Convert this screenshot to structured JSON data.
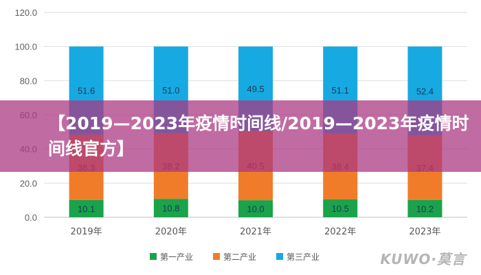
{
  "chart_data": {
    "type": "bar",
    "stacked": true,
    "categories": [
      "2019年",
      "2020年",
      "2021年",
      "2022年",
      "2023年"
    ],
    "series": [
      {
        "name": "第一产业",
        "color": "#1aa34a",
        "values": [
          10.1,
          10.8,
          10.0,
          10.5,
          10.2
        ]
      },
      {
        "name": "第二产业",
        "color": "#f07c2a",
        "values": [
          38.3,
          38.2,
          40.5,
          38.4,
          37.4
        ]
      },
      {
        "name": "第三产业",
        "color": "#17a9e1",
        "values": [
          51.6,
          51.0,
          49.5,
          51.1,
          52.4
        ]
      }
    ],
    "y_ticks": [
      "0.0",
      "20.0",
      "40.0",
      "60.0",
      "80.0",
      "100.0",
      "120.0"
    ],
    "ylim": [
      0,
      120
    ],
    "grid": true,
    "legend_position": "bottom"
  },
  "overlay": {
    "banner_text": "【2019—2023年疫情时间线/2019—2023年疫情时间线官方】",
    "banner_color": "#ab3783"
  },
  "watermark": {
    "text": "KUWO·莫言"
  }
}
